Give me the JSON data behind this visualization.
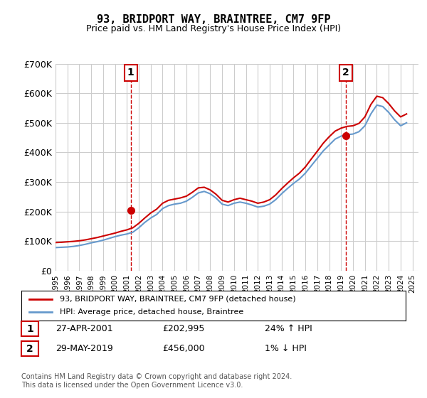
{
  "title": "93, BRIDPORT WAY, BRAINTREE, CM7 9FP",
  "subtitle": "Price paid vs. HM Land Registry's House Price Index (HPI)",
  "background_color": "#ffffff",
  "plot_bg_color": "#ffffff",
  "grid_color": "#cccccc",
  "ylabel_color": "#000000",
  "ylim": [
    0,
    700000
  ],
  "yticks": [
    0,
    100000,
    200000,
    300000,
    400000,
    500000,
    600000,
    700000
  ],
  "ytick_labels": [
    "£0",
    "£100K",
    "£200K",
    "£300K",
    "£400K",
    "£500K",
    "£600K",
    "£700K"
  ],
  "xlim_start": 1995.0,
  "xlim_end": 2025.5,
  "sale1_x": 2001.32,
  "sale1_y": 202995,
  "sale1_label": "1",
  "sale1_date": "27-APR-2001",
  "sale1_price": "£202,995",
  "sale1_hpi": "24% ↑ HPI",
  "sale2_x": 2019.41,
  "sale2_y": 456000,
  "sale2_label": "2",
  "sale2_date": "29-MAY-2019",
  "sale2_price": "£456,000",
  "sale2_hpi": "1% ↓ HPI",
  "red_line_color": "#cc0000",
  "blue_line_color": "#6699cc",
  "marker_color_red": "#cc0000",
  "marker_color_blue": "#6699cc",
  "vline_color": "#cc0000",
  "legend_label_red": "93, BRIDPORT WAY, BRAINTREE, CM7 9FP (detached house)",
  "legend_label_blue": "HPI: Average price, detached house, Braintree",
  "footer": "Contains HM Land Registry data © Crown copyright and database right 2024.\nThis data is licensed under the Open Government Licence v3.0.",
  "hpi_years": [
    1995,
    1995.5,
    1996,
    1996.5,
    1997,
    1997.5,
    1998,
    1998.5,
    1999,
    1999.5,
    2000,
    2000.5,
    2001,
    2001.5,
    2002,
    2002.5,
    2003,
    2003.5,
    2004,
    2004.5,
    2005,
    2005.5,
    2006,
    2006.5,
    2007,
    2007.5,
    2008,
    2008.5,
    2009,
    2009.5,
    2010,
    2010.5,
    2011,
    2011.5,
    2012,
    2012.5,
    2013,
    2013.5,
    2014,
    2014.5,
    2015,
    2015.5,
    2016,
    2016.5,
    2017,
    2017.5,
    2018,
    2018.5,
    2019,
    2019.5,
    2020,
    2020.5,
    2021,
    2021.5,
    2022,
    2022.5,
    2023,
    2023.5,
    2024,
    2024.5
  ],
  "hpi_values": [
    78000,
    79000,
    80000,
    82000,
    85000,
    89000,
    94000,
    98000,
    103000,
    109000,
    115000,
    120000,
    124000,
    130000,
    145000,
    163000,
    178000,
    190000,
    210000,
    220000,
    225000,
    228000,
    235000,
    248000,
    263000,
    268000,
    260000,
    245000,
    225000,
    220000,
    228000,
    232000,
    228000,
    222000,
    215000,
    218000,
    225000,
    240000,
    260000,
    278000,
    295000,
    310000,
    330000,
    355000,
    380000,
    405000,
    425000,
    445000,
    455000,
    460000,
    462000,
    470000,
    490000,
    530000,
    560000,
    555000,
    535000,
    510000,
    490000,
    500000
  ],
  "price_years": [
    1995,
    1995.5,
    1996,
    1996.5,
    1997,
    1997.5,
    1998,
    1998.5,
    1999,
    1999.5,
    2000,
    2000.5,
    2001,
    2001.5,
    2002,
    2002.5,
    2003,
    2003.5,
    2004,
    2004.5,
    2005,
    2005.5,
    2006,
    2006.5,
    2007,
    2007.5,
    2008,
    2008.5,
    2009,
    2009.5,
    2010,
    2010.5,
    2011,
    2011.5,
    2012,
    2012.5,
    2013,
    2013.5,
    2014,
    2014.5,
    2015,
    2015.5,
    2016,
    2016.5,
    2017,
    2017.5,
    2018,
    2018.5,
    2019,
    2019.5,
    2020,
    2020.5,
    2021,
    2021.5,
    2022,
    2022.5,
    2023,
    2023.5,
    2024,
    2024.5
  ],
  "price_values": [
    95000,
    96000,
    97500,
    99000,
    101000,
    104000,
    108000,
    112000,
    117000,
    122000,
    127000,
    133000,
    138000,
    145000,
    160000,
    178000,
    195000,
    208000,
    228000,
    238000,
    242000,
    246000,
    252000,
    265000,
    280000,
    282000,
    273000,
    258000,
    238000,
    232000,
    240000,
    245000,
    240000,
    235000,
    228000,
    232000,
    240000,
    256000,
    277000,
    296000,
    314000,
    330000,
    351000,
    378000,
    404000,
    431000,
    453000,
    472000,
    482000,
    488000,
    490000,
    498000,
    520000,
    562000,
    590000,
    585000,
    565000,
    540000,
    520000,
    530000
  ]
}
